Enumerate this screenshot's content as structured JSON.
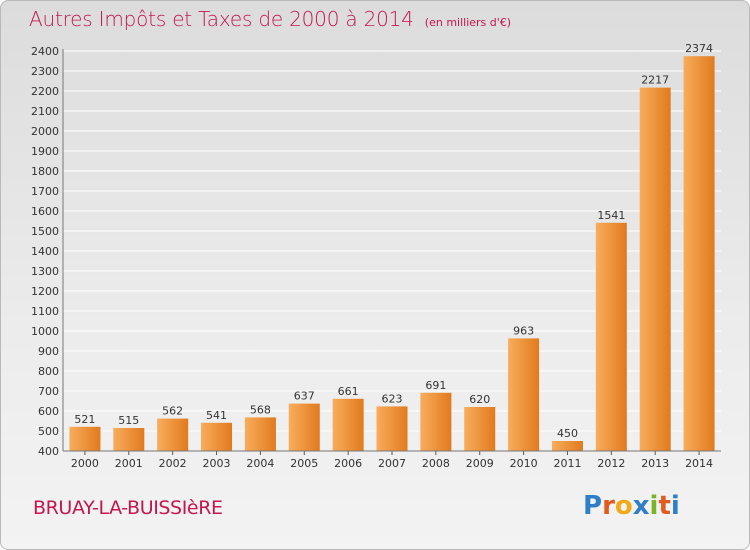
{
  "header": {
    "title": "Autres Impôts et Taxes de 2000 à 2014",
    "unit": "(en milliers d'€)"
  },
  "footer": {
    "town": "BRUAY-LA-BUISSIèRE",
    "logo_text": "Proxiti",
    "logo_colors": [
      "#2f7fc8",
      "#e25b1f",
      "#f4a91b",
      "#2f7fc8",
      "#7ab528",
      "#e25b1f",
      "#2f7fc8"
    ]
  },
  "colors": {
    "bar_light": "#f8ad5c",
    "bar_dark": "#e17a1e",
    "accent": "#c5164e"
  },
  "chart_data": {
    "type": "bar",
    "title": "Autres Impôts et Taxes de 2000 à 2014",
    "xlabel": "",
    "ylabel": "",
    "categories": [
      "2000",
      "2001",
      "2002",
      "2003",
      "2004",
      "2005",
      "2006",
      "2007",
      "2008",
      "2009",
      "2010",
      "2011",
      "2012",
      "2013",
      "2014"
    ],
    "values": [
      521,
      515,
      562,
      541,
      568,
      637,
      661,
      623,
      691,
      620,
      963,
      450,
      1541,
      2217,
      2374
    ],
    "ylim": [
      400,
      2400
    ],
    "yticks": [
      400,
      500,
      600,
      700,
      800,
      900,
      1000,
      1100,
      1200,
      1300,
      1400,
      1500,
      1600,
      1700,
      1800,
      1900,
      2000,
      2100,
      2200,
      2300,
      2400
    ],
    "grid": true,
    "legend": "none"
  }
}
